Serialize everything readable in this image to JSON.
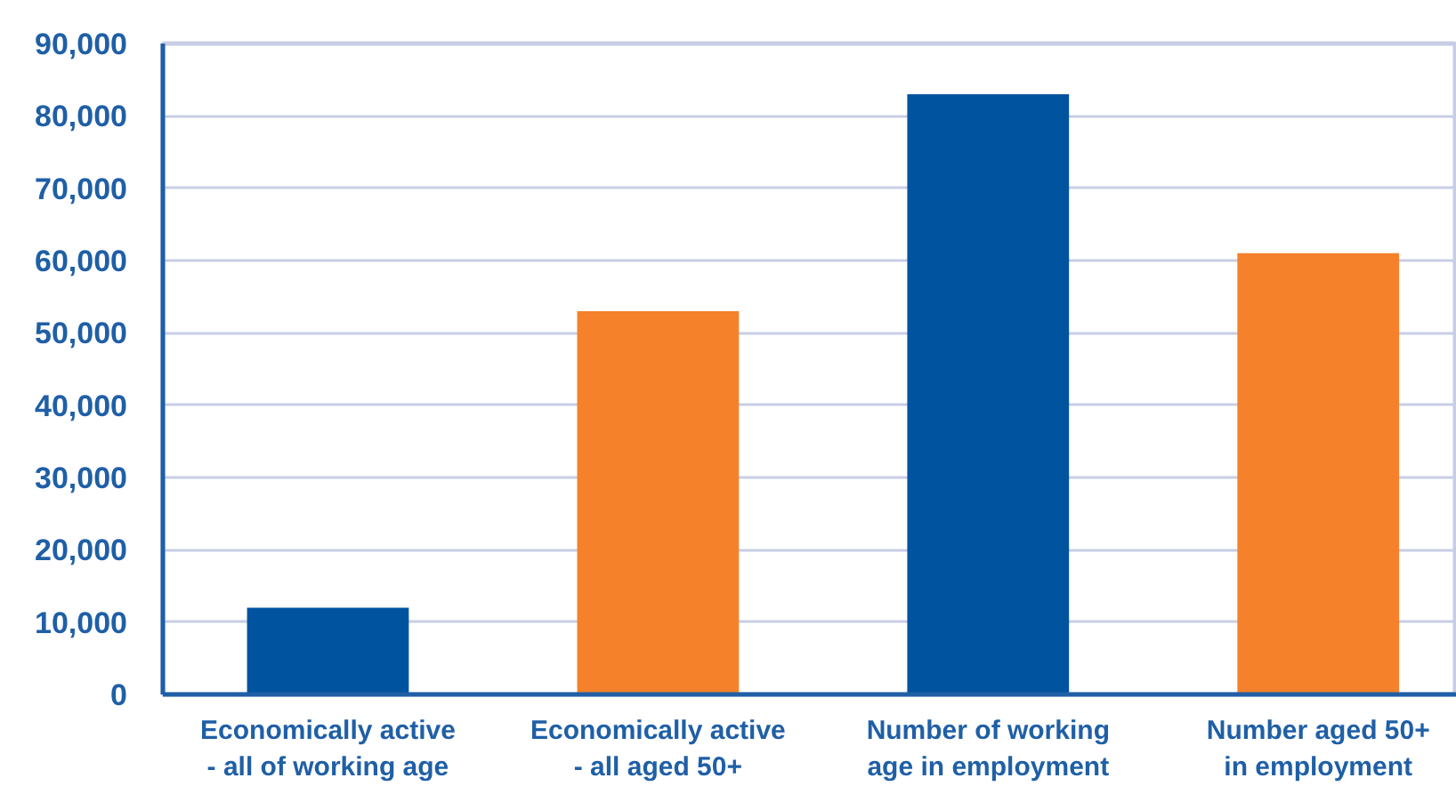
{
  "chart_data": {
    "type": "bar",
    "categories": [
      "Economically active - all of working age",
      "Economically active - all aged 50+",
      "Number of working age in employment",
      "Number aged 50+ in employment"
    ],
    "values": [
      12000,
      53000,
      83000,
      61000
    ],
    "colors": [
      "#00539f",
      "#f5812a",
      "#00539f",
      "#f5812a"
    ],
    "ylim": [
      0,
      90000
    ],
    "yticks": [
      0,
      {
        "value": 10000,
        "label": "10,000"
      },
      {
        "value": 20000,
        "label": "20,000"
      },
      {
        "value": 30000,
        "label": "30,000"
      },
      {
        "value": 40000,
        "label": "40,000"
      },
      {
        "value": 50000,
        "label": "50,000"
      },
      {
        "value": 60000,
        "label": "60,000"
      },
      {
        "value": 70000,
        "label": "70,000"
      },
      {
        "value": 80000,
        "label": "80,000"
      },
      {
        "value": 90000,
        "label": "90,000"
      }
    ],
    "grid": "y"
  }
}
